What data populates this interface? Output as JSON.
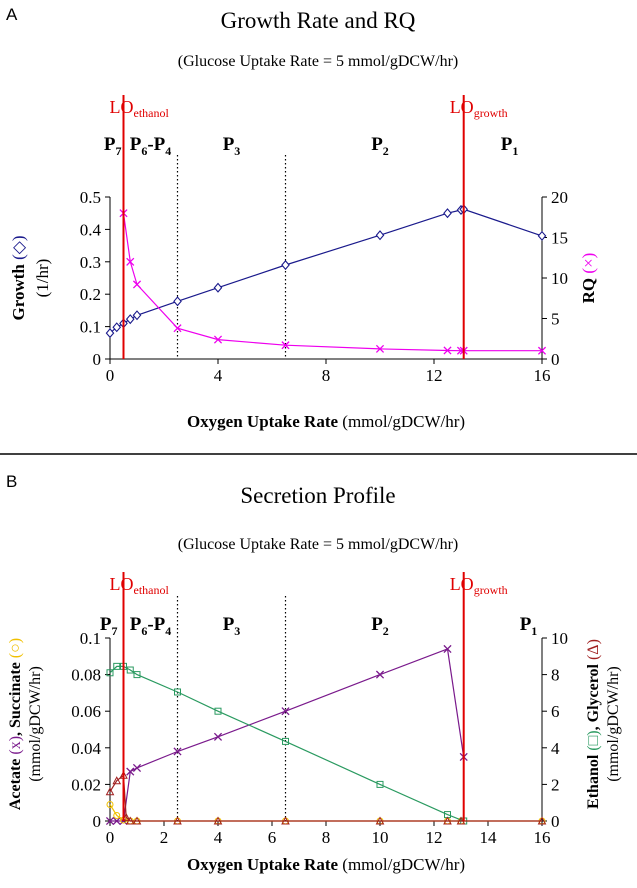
{
  "panels": [
    {
      "letter": "A",
      "title": "Growth Rate and RQ",
      "subtitle": "(Glucose Uptake Rate = 5 mmol/gDCW/hr)",
      "xlabel_bold": "Oxygen Uptake Rate",
      "xlabel_rest": " (mmol/gDCW/hr)",
      "ylabel_left": [
        {
          "text": "Growth",
          "bold": true
        },
        {
          "text": " (◇)",
          "color": "#1a1a8c"
        },
        {
          "text": " (1/hr)"
        }
      ],
      "ylabel_right": [
        {
          "text": "RQ",
          "bold": true
        },
        {
          "text": " (×)",
          "color": "#ee00ee"
        }
      ],
      "phase_labels": [
        {
          "base": "P",
          "sub": "7",
          "at": 0.1
        },
        {
          "base": "P",
          "sub": "6",
          "mid": "-P",
          "sub2": "4",
          "at": 1.5
        },
        {
          "base": "P",
          "sub": "3",
          "at": 4.5
        },
        {
          "base": "P",
          "sub": "2",
          "at": 10
        },
        {
          "base": "P",
          "sub": "1",
          "at": 14.8
        }
      ],
      "lo_labels": [
        {
          "base": "LO",
          "sub": "ethanol",
          "at": 0.5
        },
        {
          "base": "LO",
          "sub": "growth",
          "at": 13.1
        }
      ]
    },
    {
      "letter": "B",
      "title": "Secretion Profile",
      "subtitle": "(Glucose Uptake Rate = 5 mmol/gDCW/hr)",
      "xlabel_bold": "Oxygen Uptake Rate",
      "xlabel_rest": " (mmol/gDCW/hr)",
      "ylabel_left_line1": [
        {
          "text": "Acetate",
          "bold": true
        },
        {
          "text": " (x)",
          "color": "#7a1a8c"
        },
        {
          "text": ", ",
          "bold": true
        },
        {
          "text": "Succinate",
          "bold": true
        },
        {
          "text": " (○)",
          "color": "#f0c000"
        }
      ],
      "ylabel_left_line2": "(mmol/gDCW/hr)",
      "ylabel_right_line1": [
        {
          "text": "Ethanol",
          "bold": true
        },
        {
          "text": " (□)",
          "color": "#2a9a60"
        },
        {
          "text": ", ",
          "bold": true
        },
        {
          "text": "Glycerol",
          "bold": true
        },
        {
          "text": " (Δ)",
          "color": "#a02020"
        }
      ],
      "ylabel_right_line2": "(mmol/gDCW/hr)",
      "phase_labels": [
        {
          "base": "P",
          "sub": "7",
          "at": -0.05
        },
        {
          "base": "P",
          "sub": "6",
          "mid": "-P",
          "sub2": "4",
          "at": 1.5
        },
        {
          "base": "P",
          "sub": "3",
          "at": 4.5
        },
        {
          "base": "P",
          "sub": "2",
          "at": 10
        },
        {
          "base": "P",
          "sub": "1",
          "at": 15.5
        }
      ],
      "lo_labels": [
        {
          "base": "LO",
          "sub": "ethanol",
          "at": 0.5
        },
        {
          "base": "LO",
          "sub": "growth",
          "at": 13.1
        }
      ]
    }
  ],
  "colors": {
    "growth": "#1a1a8c",
    "rq": "#ee00ee",
    "acetate": "#7a1a8c",
    "succinate": "#f0c000",
    "ethanol": "#2a9a60",
    "glycerol": "#a02020",
    "lo_line": "#e00000"
  },
  "chart_data": [
    {
      "type": "line",
      "title": "Growth Rate and RQ",
      "subtitle": "(Glucose Uptake Rate = 5 mmol/gDCW/hr)",
      "xlabel": "Oxygen Uptake Rate (mmol/gDCW/hr)",
      "ylabel": "Growth (◇) (1/hr)",
      "y2label": "RQ (×)",
      "xlim": [
        0,
        16
      ],
      "ylim": [
        0,
        0.5
      ],
      "y2lim": [
        0,
        20
      ],
      "xticks": [
        0,
        4,
        8,
        12,
        16
      ],
      "yticks": [
        0,
        0.1,
        0.2,
        0.3,
        0.4,
        0.5
      ],
      "yticklabels": [
        "0",
        "0.1",
        "0.2",
        "0.3",
        "0.4",
        "0.5"
      ],
      "y2ticks": [
        0,
        5,
        10,
        15,
        20
      ],
      "phase_boundaries": [
        2.5,
        6.5
      ],
      "lo_lines": [
        0.5,
        13.1
      ],
      "series": [
        {
          "key": "growth",
          "axis": "left",
          "marker": "diamond",
          "x": [
            0,
            0.25,
            0.5,
            0.75,
            1,
            2.5,
            4,
            6.5,
            10,
            12.5,
            13,
            13.1,
            16
          ],
          "y": [
            0.08,
            0.098,
            0.11,
            0.123,
            0.135,
            0.178,
            0.22,
            0.29,
            0.382,
            0.45,
            0.46,
            0.462,
            0.38
          ]
        },
        {
          "key": "rq",
          "axis": "right",
          "marker": "x",
          "x": [
            0.5,
            0.75,
            1,
            2.5,
            4,
            6.5,
            10,
            12.5,
            13,
            13.1,
            16
          ],
          "y": [
            18,
            12,
            9.2,
            3.8,
            2.4,
            1.7,
            1.25,
            1.05,
            1.03,
            1.02,
            1.02
          ]
        }
      ]
    },
    {
      "type": "line",
      "title": "Secretion Profile",
      "subtitle": "(Glucose Uptake Rate = 5 mmol/gDCW/hr)",
      "xlabel": "Oxygen Uptake Rate (mmol/gDCW/hr)",
      "ylabel": "Acetate (x), Succinate (○) (mmol/gDCW/hr)",
      "y2label": "Ethanol (□), Glycerol (Δ) (mmol/gDCW/hr)",
      "xlim": [
        0,
        16
      ],
      "ylim": [
        0,
        0.1
      ],
      "y2lim": [
        0,
        10
      ],
      "xticks": [
        0,
        2,
        4,
        6,
        8,
        10,
        12,
        14,
        16
      ],
      "yticks": [
        0,
        0.02,
        0.04,
        0.06,
        0.08,
        0.1
      ],
      "yticklabels": [
        "0",
        "0.02",
        "0.04",
        "0.06",
        "0.08",
        "0.1"
      ],
      "y2ticks": [
        0,
        2,
        4,
        6,
        8,
        10
      ],
      "phase_boundaries": [
        2.5,
        6.5
      ],
      "lo_lines": [
        0.5,
        13.1
      ],
      "series": [
        {
          "key": "acetate",
          "axis": "left",
          "marker": "x",
          "x": [
            0,
            0.25,
            0.5,
            0.75,
            1,
            2.5,
            4,
            6.5,
            10,
            12.5,
            13.1
          ],
          "y": [
            0,
            0,
            0,
            0.027,
            0.029,
            0.038,
            0.046,
            0.06,
            0.08,
            0.094,
            0.035
          ]
        },
        {
          "key": "succinate",
          "axis": "left",
          "marker": "circle",
          "x": [
            0,
            0.25,
            0.5,
            0.75,
            1,
            2.5,
            4,
            6.5,
            10,
            12.5,
            13,
            16
          ],
          "y": [
            0.009,
            0.003,
            0.0005,
            0,
            0,
            0,
            0,
            0,
            0,
            0,
            0,
            0
          ]
        },
        {
          "key": "ethanol",
          "axis": "right",
          "marker": "square",
          "x": [
            0,
            0.25,
            0.5,
            0.75,
            1,
            2.5,
            4,
            6.5,
            10,
            12.5,
            13.1
          ],
          "y": [
            8.1,
            8.45,
            8.45,
            8.25,
            8.0,
            7.05,
            6.0,
            4.35,
            2.0,
            0.35,
            0
          ]
        },
        {
          "key": "glycerol",
          "axis": "right",
          "marker": "triangle",
          "x": [
            0,
            0.25,
            0.5,
            0.6,
            0.75,
            1,
            2.5,
            4,
            6.5,
            10,
            12.5,
            13,
            16
          ],
          "y": [
            1.6,
            2.2,
            2.5,
            0.2,
            0,
            0,
            0,
            0,
            0,
            0,
            0,
            0,
            0
          ]
        }
      ]
    }
  ]
}
